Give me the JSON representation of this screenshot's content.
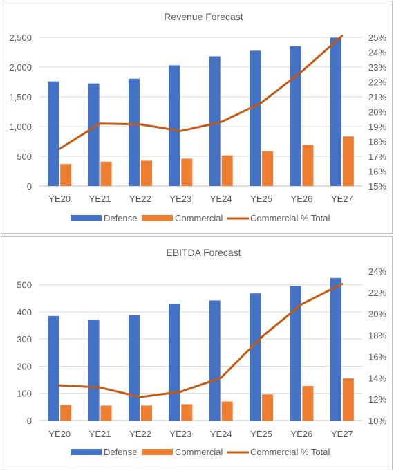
{
  "chart_data": [
    {
      "type": "bar",
      "title": "Revenue Forecast",
      "categories": [
        "YE20",
        "YE21",
        "YE22",
        "YE23",
        "YE24",
        "YE25",
        "YE26",
        "YE27"
      ],
      "series": [
        {
          "name": "Defense",
          "type": "bar",
          "axis": "left",
          "color": "#4472C4",
          "values": [
            1760,
            1725,
            1805,
            2030,
            2180,
            2275,
            2350,
            2495
          ]
        },
        {
          "name": "Commercial",
          "type": "bar",
          "axis": "left",
          "color": "#ED7D31",
          "values": [
            370,
            410,
            425,
            460,
            515,
            585,
            690,
            835
          ]
        },
        {
          "name": "Commercial % Total",
          "type": "line",
          "axis": "right",
          "color": "#C55A11",
          "values": [
            17.5,
            19.2,
            19.15,
            18.7,
            19.3,
            20.6,
            22.7,
            25.1
          ]
        }
      ],
      "y_left": {
        "min": 0,
        "max": 2500,
        "ticks": [
          0,
          500,
          1000,
          1500,
          2000,
          2500
        ],
        "tick_labels": [
          "0",
          "500",
          "1,000",
          "1,500",
          "2,000",
          "2,500"
        ]
      },
      "y_right": {
        "min": 15,
        "max": 25,
        "ticks": [
          15,
          16,
          17,
          18,
          19,
          20,
          21,
          22,
          23,
          24,
          25
        ],
        "tick_labels": [
          "15%",
          "16%",
          "17%",
          "18%",
          "19%",
          "20%",
          "21%",
          "22%",
          "23%",
          "24%",
          "25%"
        ]
      },
      "legend": [
        "Defense",
        "Commercial",
        "Commercial % Total"
      ],
      "legend_position": "bottom",
      "grid": true
    },
    {
      "type": "bar",
      "title": "EBITDA Forecast",
      "categories": [
        "YE20",
        "YE21",
        "YE22",
        "YE23",
        "YE24",
        "YE25",
        "YE26",
        "YE27"
      ],
      "series": [
        {
          "name": "Defense",
          "type": "bar",
          "axis": "left",
          "color": "#4472C4",
          "values": [
            385,
            372,
            387,
            430,
            442,
            468,
            495,
            525
          ]
        },
        {
          "name": "Commercial",
          "type": "bar",
          "axis": "left",
          "color": "#ED7D31",
          "values": [
            57,
            55,
            55,
            60,
            70,
            96,
            127,
            155
          ]
        },
        {
          "name": "Commercial % Total",
          "type": "line",
          "axis": "right",
          "color": "#C55A11",
          "values": [
            13.3,
            13.1,
            12.2,
            12.7,
            14.0,
            17.8,
            20.9,
            22.8
          ]
        }
      ],
      "y_left": {
        "min": 0,
        "max": 550,
        "ticks": [
          0,
          100,
          200,
          300,
          400,
          500
        ],
        "tick_labels": [
          "0",
          "100",
          "200",
          "300",
          "400",
          "500"
        ]
      },
      "y_right": {
        "min": 10,
        "max": 24,
        "ticks": [
          10,
          12,
          14,
          16,
          18,
          20,
          22,
          24
        ],
        "tick_labels": [
          "10%",
          "12%",
          "14%",
          "16%",
          "18%",
          "20%",
          "22%",
          "24%"
        ]
      },
      "legend": [
        "Defense",
        "Commercial",
        "Commercial % Total"
      ],
      "legend_position": "bottom",
      "grid": true
    }
  ],
  "style": {
    "text_color": "#595959",
    "grid_color": "#d9d9d9",
    "axis_color": "#bfbfbf"
  }
}
